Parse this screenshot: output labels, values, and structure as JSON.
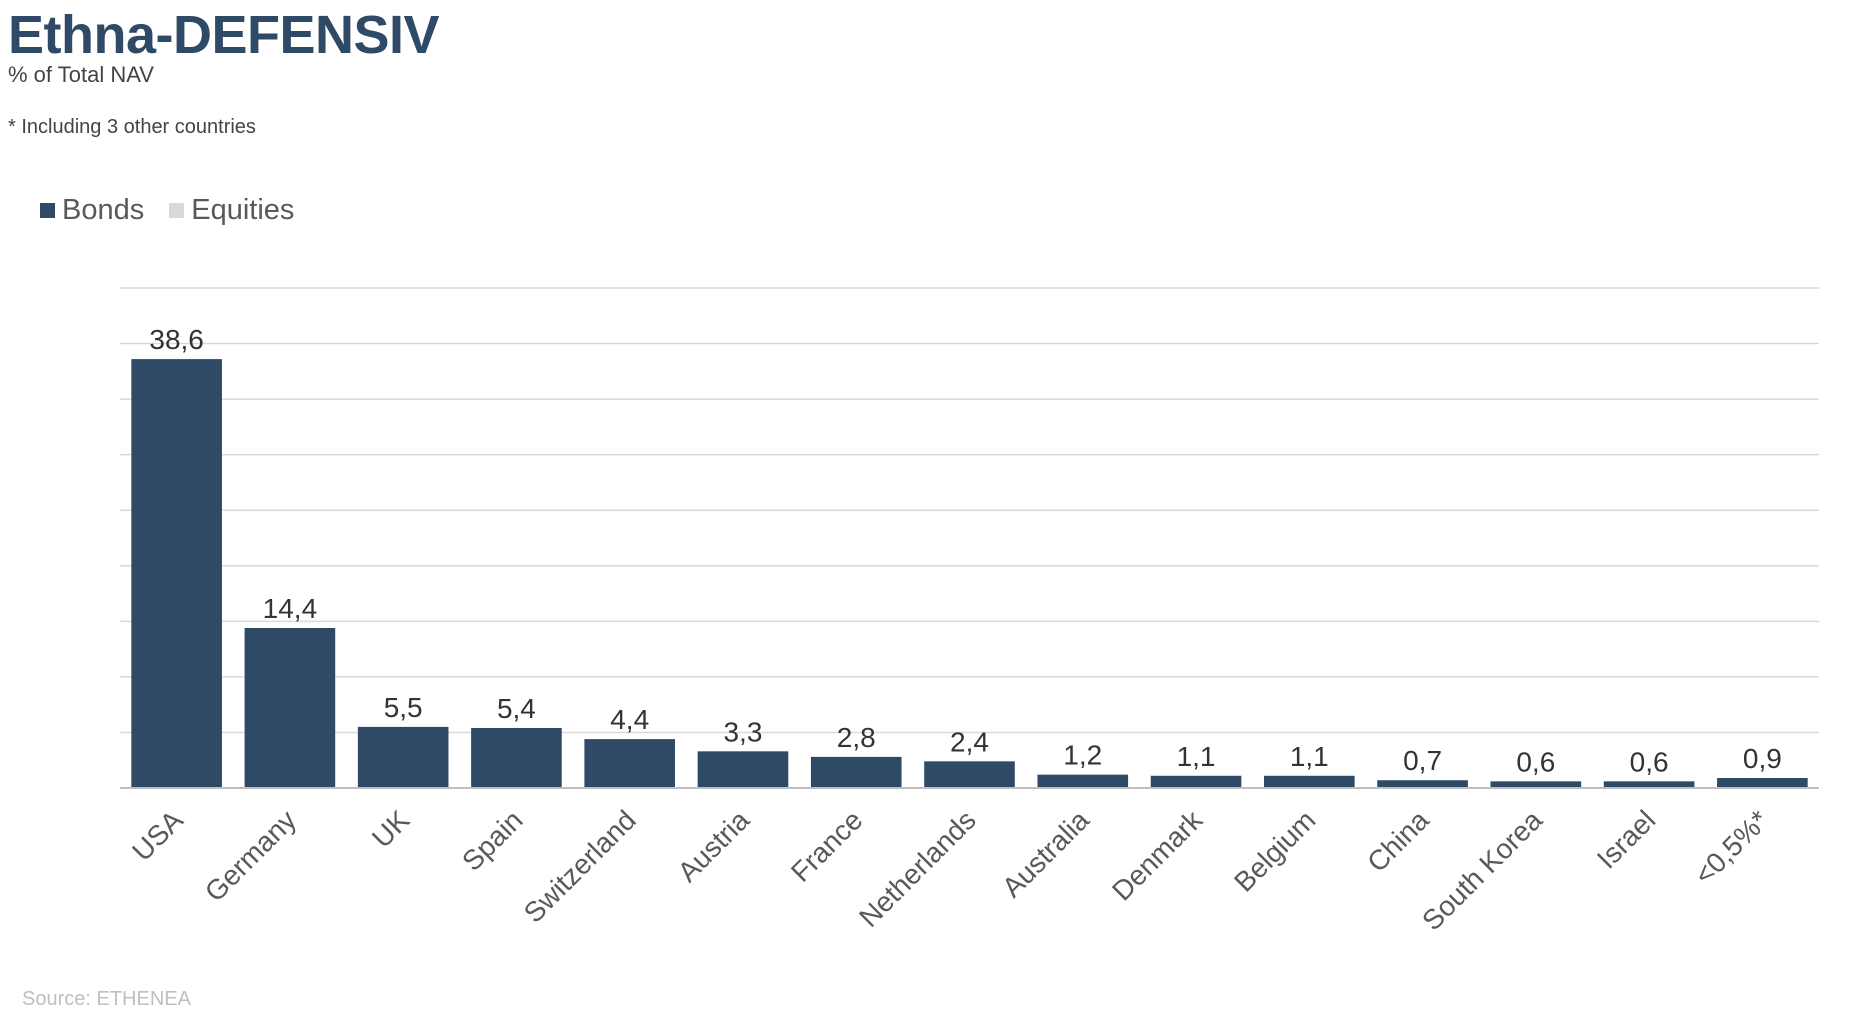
{
  "header": {
    "title": "Ethna-DEFENSIV",
    "subtitle": "% of Total NAV",
    "note": "* Including 3 other countries"
  },
  "footer": {
    "source": "Source: ETHENEA"
  },
  "colors": {
    "bonds": "#2e4a66",
    "equities": "#d9d9d9",
    "grid": "#d9d9d9",
    "axis": "#bfbfbf"
  },
  "chart_data": {
    "type": "bar",
    "title": "Ethna-DEFENSIV",
    "subtitle": "% of Total NAV",
    "xlabel": "",
    "ylabel": "",
    "categories": [
      "USA",
      "Germany",
      "UK",
      "Spain",
      "Switzerland",
      "Austria",
      "France",
      "Netherlands",
      "Australia",
      "Denmark",
      "Belgium",
      "China",
      "South Korea",
      "Israel",
      "<0,5%*"
    ],
    "series": [
      {
        "name": "Bonds",
        "values": [
          38.6,
          14.4,
          5.5,
          5.4,
          4.4,
          3.3,
          2.8,
          2.4,
          1.2,
          1.1,
          1.1,
          0.7,
          0.6,
          0.6,
          0.9
        ]
      },
      {
        "name": "Equities",
        "values": [
          0,
          0,
          0,
          0,
          0,
          0,
          0,
          0,
          0,
          0,
          0,
          0,
          0,
          0,
          0
        ]
      }
    ],
    "data_labels": [
      "38,6",
      "14,4",
      "5,5",
      "5,4",
      "4,4",
      "3,3",
      "2,8",
      "2,4",
      "1,2",
      "1,1",
      "1,1",
      "0,7",
      "0,6",
      "0,6",
      "0,9"
    ],
    "ylim": [
      0,
      45
    ],
    "grid": true,
    "legend_position": "top-left",
    "y_tick_labels_shown": false
  }
}
